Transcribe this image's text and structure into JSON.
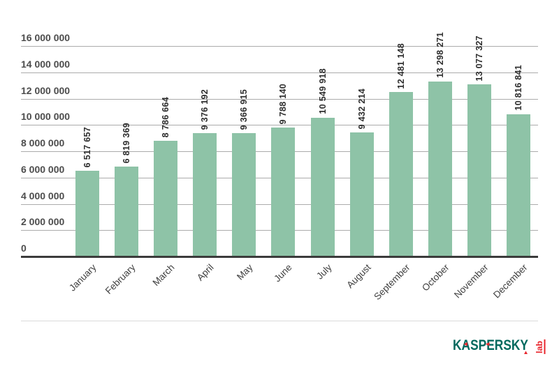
{
  "chart_data": {
    "type": "bar",
    "title": "",
    "xlabel": "",
    "ylabel": "",
    "categories": [
      "January",
      "February",
      "March",
      "April",
      "May",
      "June",
      "July",
      "August",
      "September",
      "October",
      "November",
      "December"
    ],
    "values": [
      6517657,
      6819369,
      8786664,
      9376192,
      9366915,
      9788140,
      10549918,
      9432214,
      12481148,
      13298271,
      13077327,
      10816841
    ],
    "value_labels": [
      "6 517 657",
      "6 819 369",
      "8 786 664",
      "9 376 192",
      "9 366 915",
      "9 788 140",
      "10 549 918",
      "9 432 214",
      "12 481 148",
      "13 298 271",
      "13 077 327",
      "10 816 841"
    ],
    "ylim": [
      0,
      16000000
    ],
    "ytick_interval": 2000000,
    "ytick_labels": [
      "0",
      "2 000 000",
      "4 000 000",
      "6 000 000",
      "8 000 000",
      "10 000 000",
      "12 000 000",
      "14 000 000",
      "16 000 000"
    ],
    "grid": true,
    "legend": false,
    "bar_color": "#8ec3a7",
    "grid_color": "#ababab",
    "axis_color": "#3b3b3b",
    "x_tick_rotation_deg": -45,
    "value_label_rotation_deg": -90
  },
  "footer": {
    "logo": {
      "brand": "KASPERSKY",
      "sub": "lab",
      "brand_color": "#00695e",
      "accent_color": "#e8262d"
    }
  }
}
